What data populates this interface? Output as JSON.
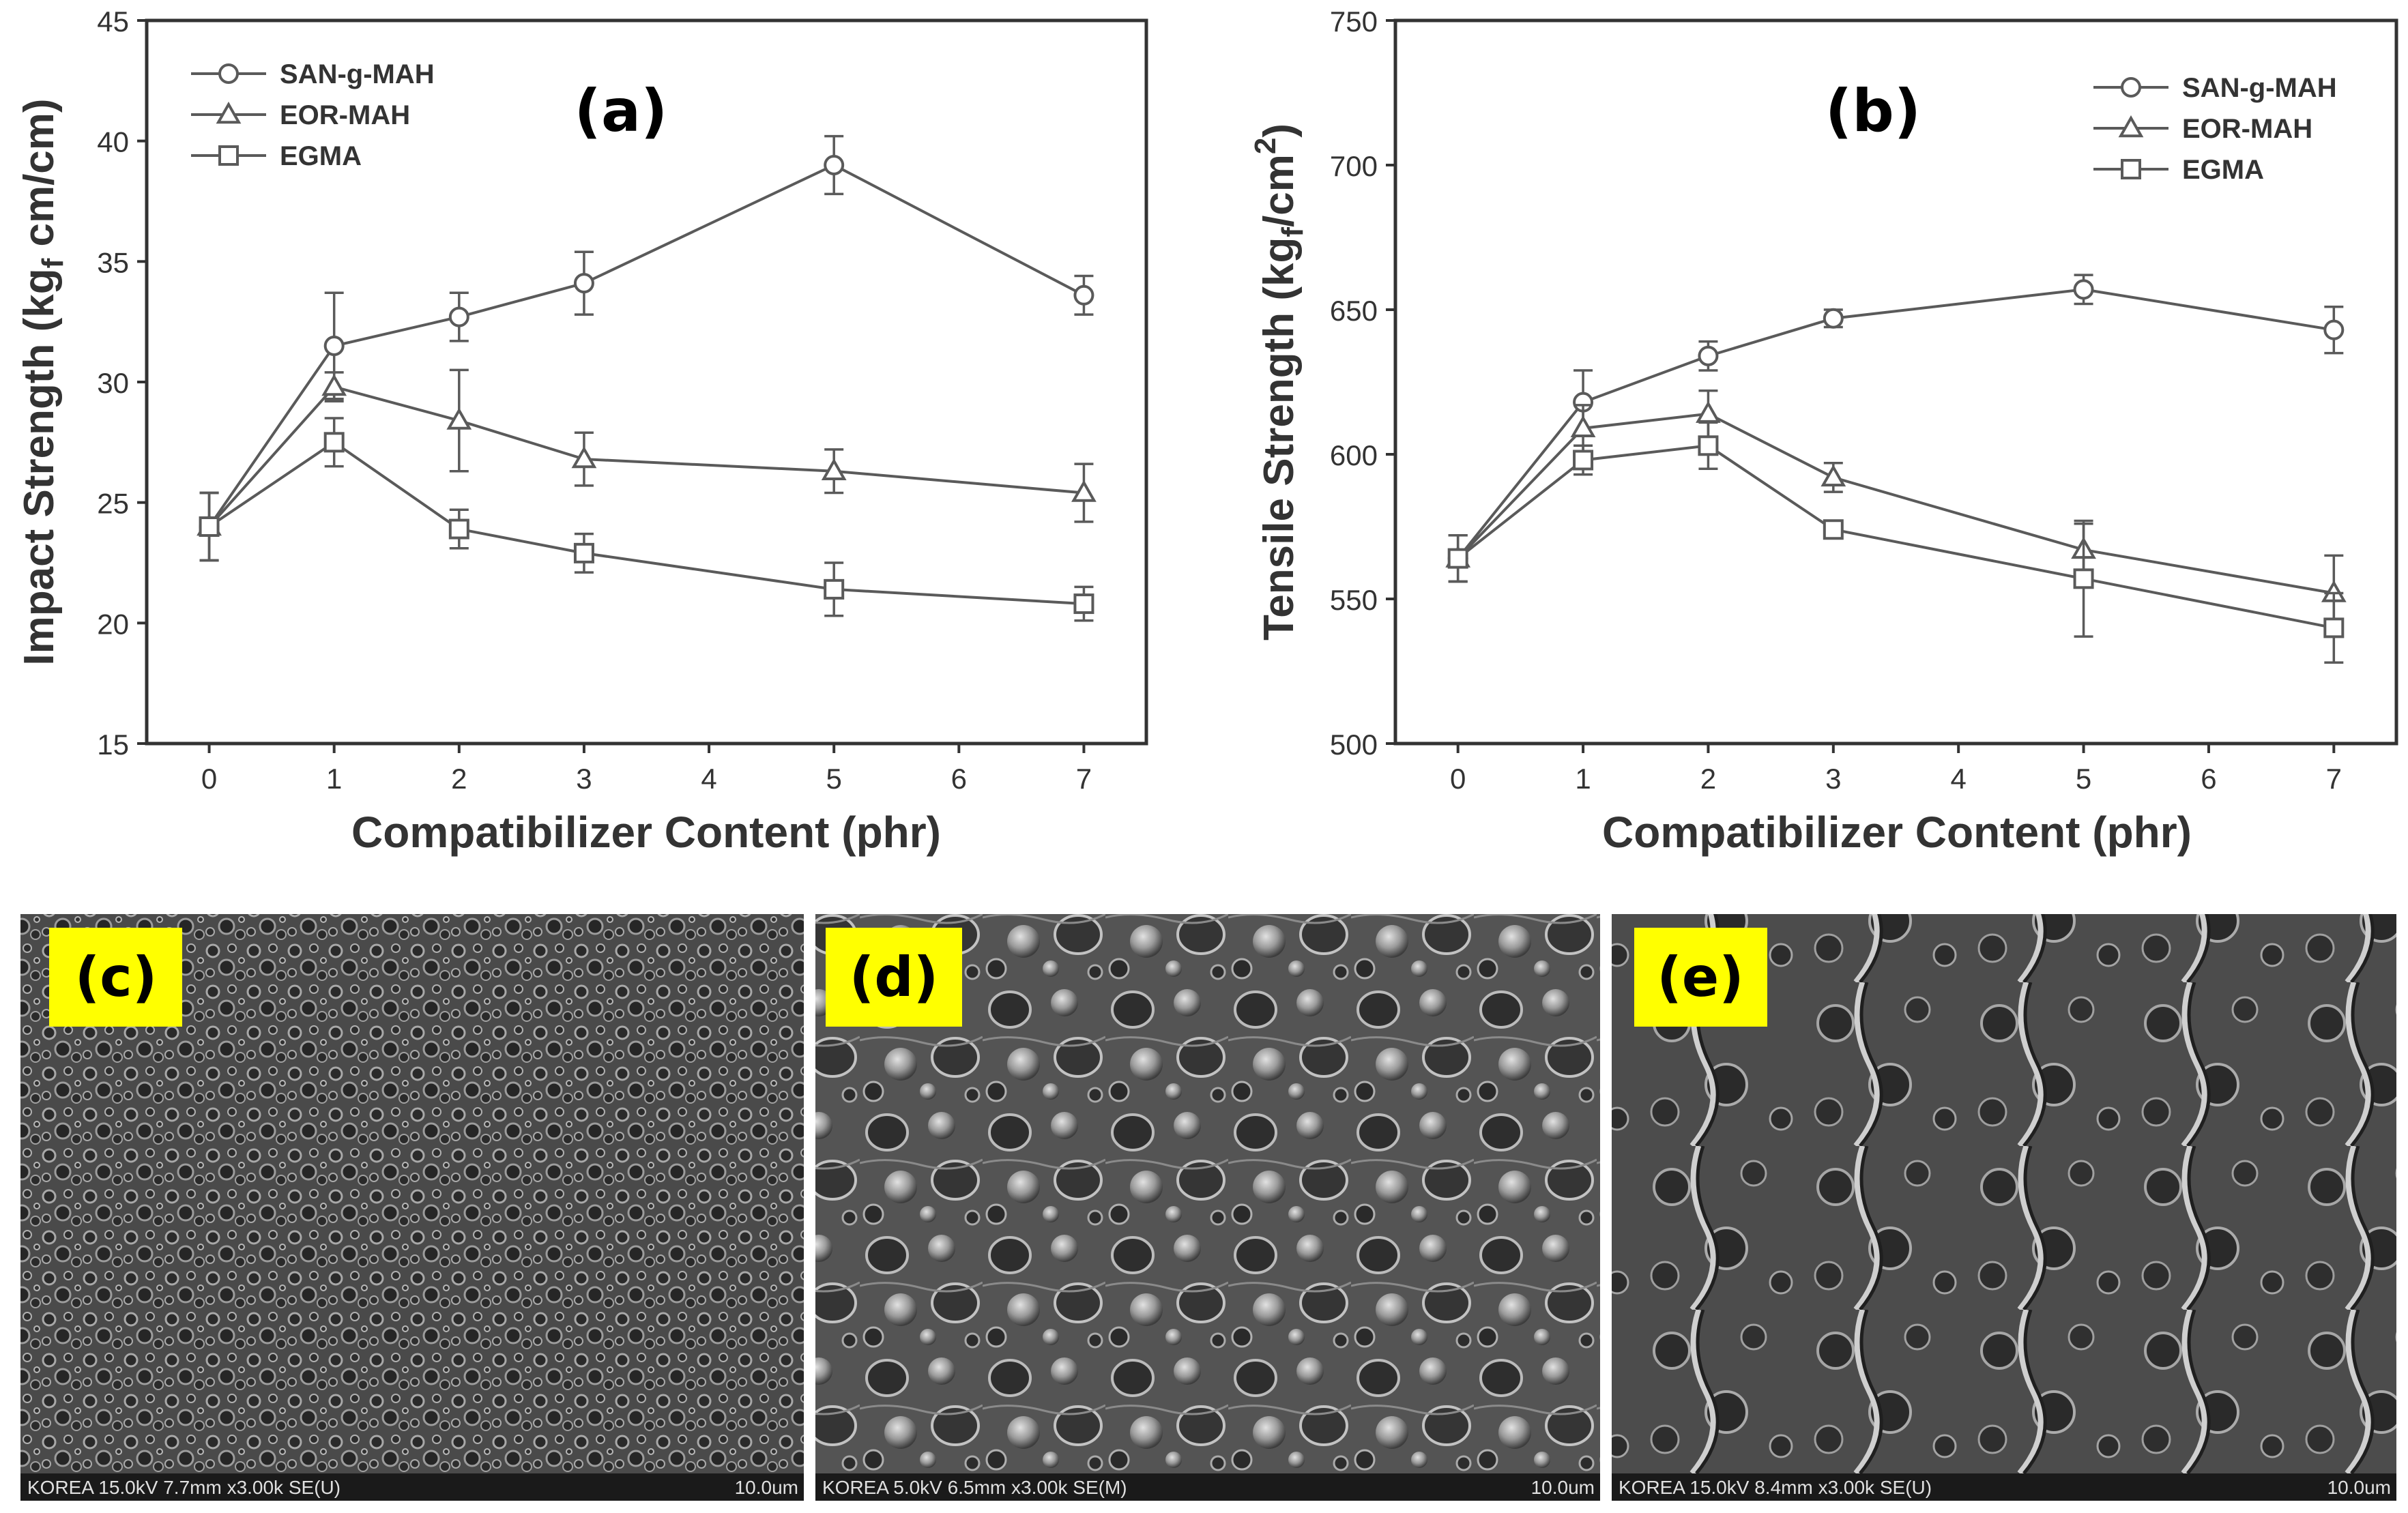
{
  "chart_data": [
    {
      "panel": "(a)",
      "type": "line",
      "ylabel_main": "Impact Strength (kg",
      "ylabel_sub": "f",
      "ylabel_tail": " cm/cm)",
      "xlabel": "Compatibilizer Content (phr)",
      "xlim": [
        -0.5,
        7.5
      ],
      "ylim": [
        15,
        45
      ],
      "xticks": [
        "0",
        "1",
        "2",
        "3",
        "4",
        "5",
        "6",
        "7"
      ],
      "yticks": [
        "15",
        "20",
        "25",
        "30",
        "35",
        "40",
        "45"
      ],
      "legend_position": "top-left",
      "series": [
        {
          "name": "SAN-g-MAH",
          "marker": "circle",
          "x": [
            0,
            1,
            2,
            3,
            5,
            7
          ],
          "y": [
            24.0,
            31.5,
            32.7,
            34.1,
            39.0,
            33.6
          ],
          "err": [
            1.4,
            2.2,
            1.0,
            1.3,
            1.2,
            0.8
          ]
        },
        {
          "name": "EOR-MAH",
          "marker": "triangle",
          "x": [
            0,
            1,
            2,
            3,
            5,
            7
          ],
          "y": [
            24.0,
            29.8,
            28.4,
            26.8,
            26.3,
            25.4
          ],
          "err": [
            1.4,
            0.6,
            2.1,
            1.1,
            0.9,
            1.2
          ]
        },
        {
          "name": "EGMA",
          "marker": "square",
          "x": [
            0,
            1,
            2,
            3,
            5,
            7
          ],
          "y": [
            24.0,
            27.5,
            23.9,
            22.9,
            21.4,
            20.8
          ],
          "err": [
            1.4,
            1.0,
            0.8,
            0.8,
            1.1,
            0.7
          ]
        }
      ]
    },
    {
      "panel": "(b)",
      "type": "line",
      "ylabel_main": "Tensile Strength (kg",
      "ylabel_sub": "f",
      "ylabel_tail": "/cm",
      "ylabel_sup": "2",
      "ylabel_close": ")",
      "xlabel": "Compatibilizer Content (phr)",
      "xlim": [
        -0.5,
        7.5
      ],
      "ylim": [
        500,
        750
      ],
      "xticks": [
        "0",
        "1",
        "2",
        "3",
        "4",
        "5",
        "6",
        "7"
      ],
      "yticks": [
        "500",
        "550",
        "600",
        "650",
        "700",
        "750"
      ],
      "legend_position": "top-right",
      "series": [
        {
          "name": "SAN-g-MAH",
          "marker": "circle",
          "x": [
            0,
            1,
            2,
            3,
            5,
            7
          ],
          "y": [
            564,
            618,
            634,
            647,
            657,
            643
          ],
          "err": [
            8,
            11,
            5,
            3,
            5,
            8
          ]
        },
        {
          "name": "EOR-MAH",
          "marker": "triangle",
          "x": [
            0,
            1,
            2,
            3,
            5,
            7
          ],
          "y": [
            564,
            609,
            614,
            592,
            567,
            552
          ],
          "err": [
            8,
            8,
            8,
            5,
            9,
            13
          ]
        },
        {
          "name": "EGMA",
          "marker": "square",
          "x": [
            0,
            1,
            2,
            3,
            5,
            7
          ],
          "y": [
            564,
            598,
            603,
            574,
            557,
            540
          ],
          "err": [
            8,
            5,
            8,
            3,
            20,
            12
          ]
        }
      ]
    }
  ],
  "micrographs": [
    {
      "label": "(c)",
      "caption": "KOREA 15.0kV 7.7mm x3.00k SE(U)",
      "scale": "10.0um",
      "texture": "fine"
    },
    {
      "label": "(d)",
      "caption": "KOREA 5.0kV 6.5mm x3.00k SE(M)",
      "scale": "10.0um",
      "texture": "coarse"
    },
    {
      "label": "(e)",
      "caption": "KOREA 15.0kV 8.4mm x3.00k SE(U)",
      "scale": "10.0um",
      "texture": "ridged"
    }
  ],
  "colors": {
    "line": "#5a5a5a",
    "label_bg": "#ffff00",
    "sem_dark": "#3a3a3a",
    "sem_light": "#b8b8b8",
    "caption_bar": "#1a1a1a"
  }
}
